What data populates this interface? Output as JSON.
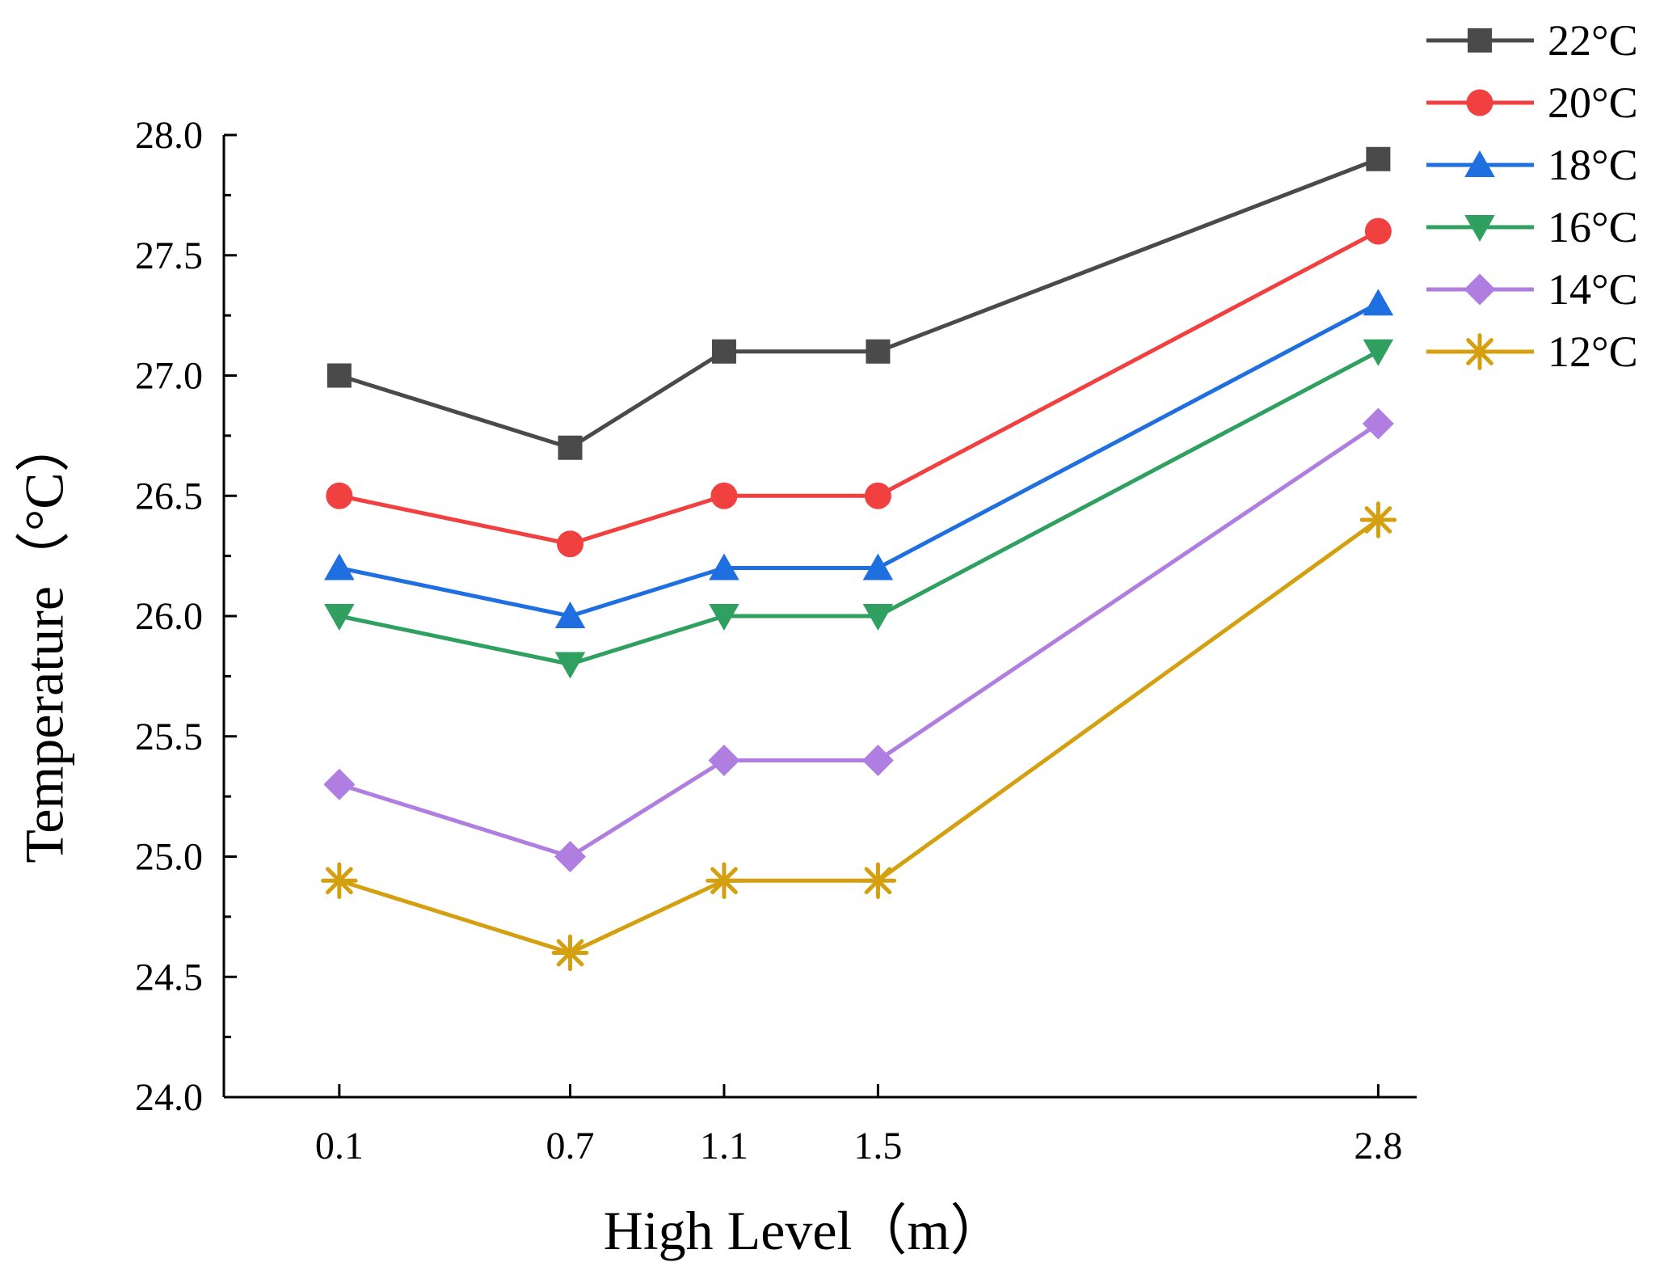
{
  "chart_data": {
    "type": "line",
    "title": "",
    "xlabel": "High Level（m）",
    "ylabel": "Temperature（°C）",
    "x": [
      0.1,
      0.7,
      1.1,
      1.5,
      2.8
    ],
    "x_tick_labels": [
      "0.1",
      "0.7",
      "1.1",
      "1.5",
      "2.8"
    ],
    "xlim": [
      -0.2,
      2.9
    ],
    "ylim": [
      24.0,
      28.0
    ],
    "y_ticks": [
      24.0,
      24.5,
      25.0,
      25.5,
      26.0,
      26.5,
      27.0,
      27.5,
      28.0
    ],
    "y_tick_labels": [
      "24.0",
      "24.5",
      "25.0",
      "25.5",
      "26.0",
      "26.5",
      "27.0",
      "27.5",
      "28.0"
    ],
    "grid": false,
    "legend_position": "top-right",
    "series": [
      {
        "name": "22°C",
        "color": "#4a4a4a",
        "marker": "square",
        "values": [
          27.0,
          26.7,
          27.1,
          27.1,
          27.9
        ]
      },
      {
        "name": "20°C",
        "color": "#f04040",
        "marker": "circle",
        "values": [
          26.5,
          26.3,
          26.5,
          26.5,
          27.6
        ]
      },
      {
        "name": "18°C",
        "color": "#1f6fe0",
        "marker": "triangle-up",
        "values": [
          26.2,
          26.0,
          26.2,
          26.2,
          27.3
        ]
      },
      {
        "name": "16°C",
        "color": "#30a060",
        "marker": "triangle-down",
        "values": [
          26.0,
          25.8,
          26.0,
          26.0,
          27.1
        ]
      },
      {
        "name": "14°C",
        "color": "#b07ee0",
        "marker": "diamond",
        "values": [
          25.3,
          25.0,
          25.4,
          25.4,
          26.8
        ]
      },
      {
        "name": "12°C",
        "color": "#d4a010",
        "marker": "asterisk",
        "values": [
          24.9,
          24.6,
          24.9,
          24.9,
          26.4
        ]
      }
    ]
  }
}
